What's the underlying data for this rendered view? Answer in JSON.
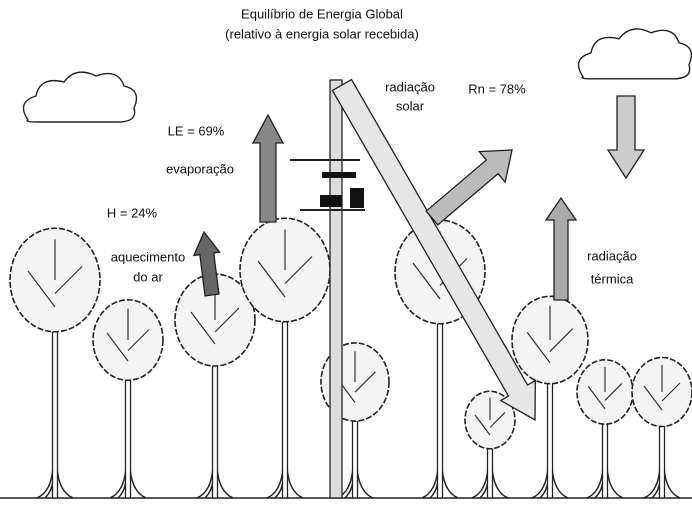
{
  "title": [
    "Equilíbrio de Energia Global",
    "(relativo à energia solar recebida)"
  ],
  "labels": [
    {
      "name": "solar-label",
      "lines": [
        "radiação",
        "solar"
      ]
    },
    {
      "name": "rn-label",
      "lines": [
        "Rn = 78%"
      ]
    },
    {
      "name": "le-label",
      "lines": [
        "LE = 69%"
      ]
    },
    {
      "name": "evaporation-label",
      "lines": [
        "evaporação"
      ]
    },
    {
      "name": "h-label",
      "lines": [
        "H = 24%"
      ]
    },
    {
      "name": "air-heating-label",
      "lines": [
        "aquecimento",
        "do ar"
      ]
    },
    {
      "name": "thermal-label",
      "lines": [
        "radiação",
        "térmica"
      ]
    }
  ]
}
